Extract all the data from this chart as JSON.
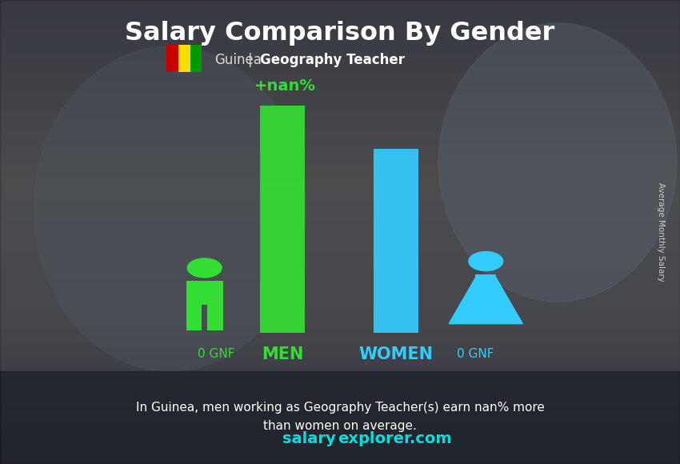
{
  "title": "Salary Comparison By Gender",
  "subtitle_country": "Guinea",
  "subtitle_job": "Geography Teacher",
  "currency": "GNF",
  "diff_label": "+nan%",
  "men_label": "MEN",
  "women_label": "WOMEN",
  "man_value_label": "0 GNF",
  "woman_value_label": "0 GNF",
  "footer_line1": "In Guinea, men working as Geography Teacher(s) earn nan% more",
  "footer_line2": "than women on average.",
  "website_salary": "salary",
  "website_rest": "explorer.com",
  "bar_man_color": "#33dd33",
  "bar_woman_color": "#33ccff",
  "men_label_color": "#33dd33",
  "women_label_color": "#33ccff",
  "diff_label_color": "#33dd33",
  "title_color": "#ffffff",
  "value_label_color": "#33dd33",
  "woman_value_label_color": "#33ccff",
  "website_salary_color": "#00dddd",
  "website_rest_color": "#00dddd",
  "footer_color": "#ffffff",
  "ylabel": "Average Monthly Salary",
  "ylabel_color": "#cccccc",
  "flag_colors": [
    "#cc0000",
    "#ffdd00",
    "#009900"
  ],
  "subtitle_color": "#dddddd",
  "subtitle_bold_color": "#ffffff",
  "bg_colors": [
    "#5a6a7a",
    "#7a8a9a",
    "#4a5a6a",
    "#6a7a8a"
  ],
  "bg_dark_overlay": "#000000"
}
